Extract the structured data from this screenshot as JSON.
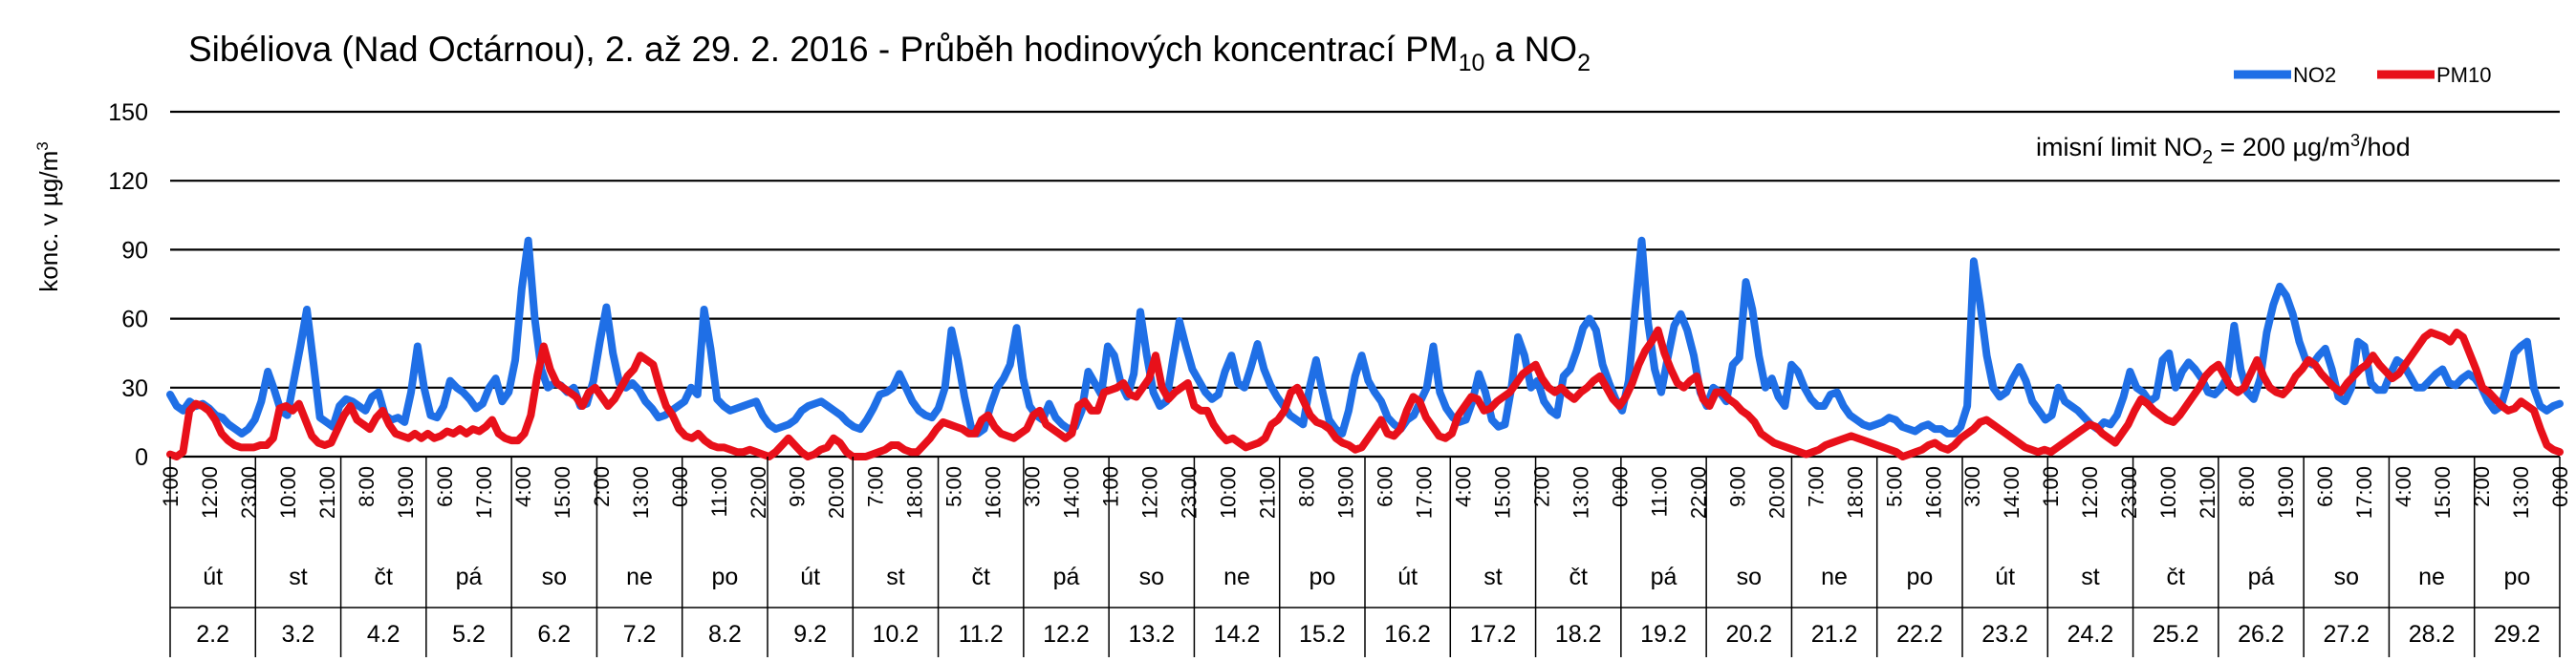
{
  "chart_data": {
    "type": "line",
    "title": {
      "main": "Sibéliova (Nad Octárnou), 2. až 29. 2. 2016 - Průběh hodinových koncentrací PM",
      "pm_sub": "10",
      "joiner": " a NO",
      "no_sub": "2"
    },
    "ylabel": {
      "main": "konc. v µg/m",
      "sup": "3"
    },
    "ylim": [
      0,
      150
    ],
    "yticks": [
      "0",
      "30",
      "60",
      "90",
      "120",
      "150"
    ],
    "grid": true,
    "legend_position": "top-right",
    "annotation": {
      "p1": "imisní limit NO",
      "sub": "2",
      "p2": " = 200 µg/m",
      "sup": "3",
      "p3": "/hod"
    },
    "xtick_labels": [
      "1:00",
      "12:00",
      "23:00",
      "10:00",
      "21:00",
      "8:00",
      "19:00",
      "6:00",
      "17:00",
      "4:00",
      "15:00",
      "2:00",
      "13:00",
      "0:00",
      "11:00",
      "22:00",
      "9:00",
      "20:00",
      "7:00",
      "18:00",
      "5:00",
      "16:00",
      "3:00",
      "14:00",
      "1:00",
      "12:00",
      "23:00",
      "10:00",
      "21:00",
      "8:00",
      "19:00",
      "6:00",
      "17:00",
      "4:00",
      "15:00",
      "2:00",
      "13:00",
      "0:00",
      "11:00",
      "22:00",
      "9:00",
      "20:00",
      "7:00",
      "18:00",
      "5:00",
      "16:00",
      "3:00",
      "14:00",
      "1:00",
      "12:00",
      "23:00",
      "10:00",
      "21:00",
      "8:00",
      "19:00",
      "6:00",
      "17:00",
      "4:00",
      "15:00",
      "2:00",
      "13:00",
      "0:00"
    ],
    "days": [
      {
        "weekday": "út",
        "date": "2.2"
      },
      {
        "weekday": "st",
        "date": "3.2"
      },
      {
        "weekday": "čt",
        "date": "4.2"
      },
      {
        "weekday": "pá",
        "date": "5.2"
      },
      {
        "weekday": "so",
        "date": "6.2"
      },
      {
        "weekday": "ne",
        "date": "7.2"
      },
      {
        "weekday": "po",
        "date": "8.2"
      },
      {
        "weekday": "út",
        "date": "9.2"
      },
      {
        "weekday": "st",
        "date": "10.2"
      },
      {
        "weekday": "čt",
        "date": "11.2"
      },
      {
        "weekday": "pá",
        "date": "12.2"
      },
      {
        "weekday": "so",
        "date": "13.2"
      },
      {
        "weekday": "ne",
        "date": "14.2"
      },
      {
        "weekday": "po",
        "date": "15.2"
      },
      {
        "weekday": "út",
        "date": "16.2"
      },
      {
        "weekday": "st",
        "date": "17.2"
      },
      {
        "weekday": "čt",
        "date": "18.2"
      },
      {
        "weekday": "pá",
        "date": "19.2"
      },
      {
        "weekday": "so",
        "date": "20.2"
      },
      {
        "weekday": "ne",
        "date": "21.2"
      },
      {
        "weekday": "po",
        "date": "22.2"
      },
      {
        "weekday": "út",
        "date": "23.2"
      },
      {
        "weekday": "st",
        "date": "24.2"
      },
      {
        "weekday": "čt",
        "date": "25.2"
      },
      {
        "weekday": "pá",
        "date": "26.2"
      },
      {
        "weekday": "so",
        "date": "27.2"
      },
      {
        "weekday": "ne",
        "date": "28.2"
      },
      {
        "weekday": "po",
        "date": "29.2"
      }
    ],
    "series": [
      {
        "name": "NO2",
        "color": "#1f6fe6",
        "values": [
          27,
          22,
          20,
          24,
          22,
          23,
          21,
          18,
          17,
          14,
          12,
          10,
          12,
          16,
          24,
          37,
          29,
          20,
          18,
          33,
          48,
          64,
          41,
          17,
          15,
          13,
          22,
          25,
          24,
          22,
          20,
          26,
          28,
          18,
          16,
          17,
          15,
          28,
          48,
          30,
          18,
          17,
          22,
          33,
          30,
          28,
          25,
          21,
          23,
          30,
          34,
          24,
          28,
          42,
          73,
          94,
          60,
          38,
          30,
          32,
          31,
          28,
          30,
          22,
          23,
          33,
          50,
          65,
          45,
          32,
          30,
          32,
          29,
          24,
          21,
          17,
          18,
          20,
          22,
          24,
          30,
          27,
          64,
          47,
          25,
          22,
          20,
          21,
          22,
          23,
          24,
          18,
          14,
          12,
          13,
          14,
          16,
          20,
          22,
          23,
          24,
          22,
          20,
          18,
          15,
          13,
          12,
          16,
          21,
          27,
          28,
          30,
          36,
          30,
          24,
          20,
          18,
          17,
          21,
          30,
          55,
          42,
          26,
          13,
          10,
          12,
          22,
          30,
          34,
          40,
          56,
          34,
          22,
          18,
          16,
          23,
          17,
          14,
          12,
          13,
          20,
          37,
          32,
          27,
          48,
          44,
          32,
          26,
          36,
          63,
          44,
          28,
          22,
          24,
          42,
          59,
          48,
          38,
          33,
          28,
          25,
          27,
          37,
          44,
          32,
          30,
          39,
          49,
          38,
          31,
          26,
          22,
          18,
          16,
          14,
          30,
          42,
          28,
          16,
          12,
          10,
          20,
          35,
          44,
          33,
          28,
          24,
          17,
          14,
          12,
          16,
          18,
          24,
          30,
          48,
          28,
          21,
          17,
          15,
          16,
          24,
          36,
          28,
          16,
          13,
          14,
          30,
          52,
          44,
          30,
          33,
          24,
          20,
          18,
          35,
          38,
          46,
          56,
          60,
          55,
          40,
          32,
          25,
          20,
          33,
          64,
          94,
          58,
          38,
          28,
          43,
          57,
          62,
          55,
          44,
          28,
          22,
          30,
          28,
          24,
          40,
          43,
          76,
          64,
          44,
          30,
          34,
          26,
          22,
          40,
          37,
          30,
          25,
          22,
          22,
          27,
          28,
          22,
          18,
          16,
          14,
          13,
          14,
          15,
          17,
          16,
          13,
          12,
          11,
          13,
          14,
          12,
          12,
          10,
          10,
          13,
          22,
          85,
          66,
          44,
          30,
          26,
          28,
          34,
          39,
          33,
          24,
          20,
          16,
          18,
          30,
          24,
          22,
          20,
          17,
          14,
          12,
          15,
          14,
          18,
          26,
          37,
          30,
          28,
          24,
          26,
          42,
          45,
          30,
          37,
          41,
          38,
          34,
          28,
          27,
          30,
          35,
          57,
          38,
          28,
          25,
          34,
          54,
          66,
          74,
          70,
          62,
          50,
          42,
          40,
          44,
          47,
          38,
          26,
          24,
          30,
          50,
          48,
          32,
          29,
          29,
          36,
          42,
          40,
          35,
          30,
          30,
          33,
          36,
          38,
          32,
          31,
          34,
          36,
          34,
          30,
          24,
          20,
          22,
          32,
          45,
          48,
          50,
          30,
          22,
          20,
          22,
          23
        ]
      },
      {
        "name": "PM10",
        "color": "#e8101a",
        "values": [
          1,
          0,
          2,
          20,
          23,
          22,
          20,
          16,
          10,
          7,
          5,
          4,
          4,
          4,
          5,
          5,
          8,
          21,
          22,
          20,
          23,
          16,
          9,
          6,
          5,
          6,
          12,
          18,
          22,
          16,
          14,
          12,
          17,
          20,
          14,
          10,
          9,
          8,
          10,
          8,
          10,
          8,
          9,
          11,
          10,
          12,
          10,
          12,
          11,
          13,
          16,
          10,
          8,
          7,
          7,
          10,
          18,
          35,
          48,
          38,
          32,
          30,
          28,
          26,
          22,
          28,
          30,
          26,
          22,
          25,
          30,
          35,
          38,
          44,
          42,
          40,
          30,
          22,
          18,
          12,
          9,
          8,
          10,
          7,
          5,
          4,
          4,
          3,
          2,
          2,
          3,
          2,
          1,
          0,
          2,
          5,
          8,
          5,
          2,
          0,
          1,
          3,
          4,
          8,
          6,
          2,
          0,
          0,
          0,
          1,
          2,
          3,
          5,
          5,
          3,
          2,
          2,
          5,
          8,
          12,
          15,
          14,
          13,
          12,
          10,
          10,
          16,
          18,
          13,
          10,
          9,
          8,
          10,
          12,
          18,
          20,
          14,
          12,
          10,
          8,
          10,
          22,
          24,
          20,
          20,
          28,
          29,
          30,
          32,
          27,
          26,
          30,
          34,
          44,
          30,
          25,
          28,
          30,
          32,
          22,
          20,
          20,
          14,
          10,
          7,
          8,
          6,
          4,
          5,
          6,
          8,
          14,
          16,
          20,
          28,
          30,
          24,
          18,
          15,
          14,
          12,
          8,
          6,
          5,
          3,
          4,
          8,
          12,
          16,
          10,
          9,
          12,
          20,
          26,
          24,
          17,
          13,
          9,
          8,
          10,
          18,
          22,
          26,
          25,
          20,
          21,
          24,
          26,
          28,
          32,
          36,
          38,
          40,
          34,
          30,
          28,
          30,
          27,
          25,
          28,
          30,
          33,
          35,
          30,
          25,
          22,
          26,
          32,
          40,
          46,
          50,
          55,
          45,
          38,
          32,
          30,
          33,
          35,
          25,
          22,
          28,
          28,
          25,
          23,
          20,
          18,
          15,
          10,
          8,
          6,
          5,
          4,
          3,
          2,
          1,
          2,
          3,
          5,
          6,
          7,
          8,
          9,
          8,
          7,
          6,
          5,
          4,
          3,
          2,
          0,
          1,
          2,
          3,
          5,
          6,
          4,
          3,
          5,
          8,
          10,
          12,
          15,
          16,
          14,
          12,
          10,
          8,
          6,
          4,
          3,
          2,
          3,
          2,
          4,
          6,
          8,
          10,
          12,
          14,
          13,
          10,
          8,
          6,
          10,
          14,
          20,
          25,
          23,
          20,
          18,
          16,
          15,
          18,
          22,
          26,
          30,
          35,
          38,
          40,
          35,
          30,
          28,
          30,
          36,
          42,
          35,
          30,
          28,
          27,
          30,
          35,
          38,
          42,
          40,
          36,
          33,
          30,
          28,
          32,
          35,
          38,
          40,
          44,
          40,
          37,
          34,
          36,
          40,
          44,
          48,
          52,
          54,
          53,
          52,
          50,
          54,
          52,
          45,
          38,
          30,
          28,
          25,
          22,
          20,
          21,
          24,
          22,
          20,
          12,
          5,
          3,
          2
        ]
      }
    ]
  }
}
